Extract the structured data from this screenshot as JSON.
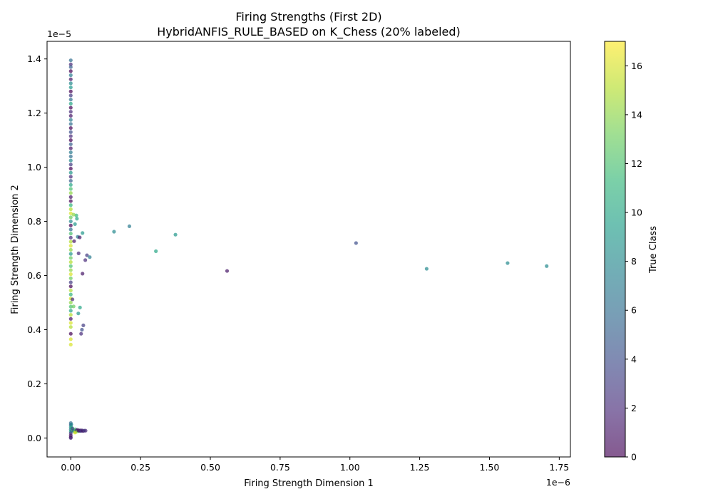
{
  "chart_data": {
    "type": "scatter",
    "title": "Firing Strengths (First 2D)",
    "subtitle": "HybridANFIS_RULE_BASED on K_Chess (20% labeled)",
    "xlabel": "Firing Strength Dimension 1",
    "ylabel": "Firing Strength Dimension 2",
    "x_offset_text": "1e−6",
    "y_offset_text": "1e−5",
    "xlim": [
      -0.085,
      1.79
    ],
    "ylim": [
      -0.07,
      1.465
    ],
    "x_ticks": [
      "0.00",
      "0.25",
      "0.50",
      "0.75",
      "1.00",
      "1.25",
      "1.50",
      "1.75"
    ],
    "y_ticks": [
      "0.0",
      "0.2",
      "0.4",
      "0.6",
      "0.8",
      "1.0",
      "1.2",
      "1.4"
    ],
    "colorbar": {
      "label": "True Class",
      "range": [
        0,
        17
      ],
      "ticks": [
        "0",
        "2",
        "4",
        "6",
        "8",
        "10",
        "12",
        "14",
        "16"
      ]
    },
    "colormap": [
      "#440154",
      "#482878",
      "#3e4989",
      "#31688e",
      "#26828e",
      "#1f9e89",
      "#35b779",
      "#6ece58",
      "#b5de2b",
      "#fde725"
    ],
    "grid": false,
    "points": [
      {
        "x": 0.0,
        "y": 1.395,
        "c": 6
      },
      {
        "x": 0.0,
        "y": 1.38,
        "c": 2
      },
      {
        "x": 0.0,
        "y": 1.37,
        "c": 5
      },
      {
        "x": 0.0,
        "y": 1.355,
        "c": 0
      },
      {
        "x": 0.0,
        "y": 1.34,
        "c": 7
      },
      {
        "x": 0.0,
        "y": 1.325,
        "c": 1
      },
      {
        "x": 0.0,
        "y": 1.31,
        "c": 8
      },
      {
        "x": 0.0,
        "y": 1.295,
        "c": 9
      },
      {
        "x": 0.0,
        "y": 1.28,
        "c": 0
      },
      {
        "x": 0.0,
        "y": 1.265,
        "c": 3
      },
      {
        "x": 0.0,
        "y": 1.25,
        "c": 6
      },
      {
        "x": 0.0,
        "y": 1.235,
        "c": 10
      },
      {
        "x": 0.0,
        "y": 1.22,
        "c": 0
      },
      {
        "x": 0.0,
        "y": 1.205,
        "c": 2
      },
      {
        "x": 0.0,
        "y": 1.19,
        "c": 1
      },
      {
        "x": 0.0,
        "y": 1.175,
        "c": 7
      },
      {
        "x": 0.0,
        "y": 1.16,
        "c": 6
      },
      {
        "x": 0.0,
        "y": 1.145,
        "c": 0
      },
      {
        "x": 0.0,
        "y": 1.13,
        "c": 4
      },
      {
        "x": 0.0,
        "y": 1.115,
        "c": 2
      },
      {
        "x": 0.0,
        "y": 1.1,
        "c": 0
      },
      {
        "x": 0.0,
        "y": 1.085,
        "c": 5
      },
      {
        "x": 0.0,
        "y": 1.07,
        "c": 1
      },
      {
        "x": 0.0,
        "y": 1.055,
        "c": 7
      },
      {
        "x": 0.0,
        "y": 1.04,
        "c": 6
      },
      {
        "x": 0.0,
        "y": 1.025,
        "c": 8
      },
      {
        "x": 0.0,
        "y": 1.01,
        "c": 3
      },
      {
        "x": 0.0,
        "y": 0.995,
        "c": 0
      },
      {
        "x": 0.0,
        "y": 0.98,
        "c": 9
      },
      {
        "x": 0.0,
        "y": 0.965,
        "c": 2
      },
      {
        "x": 0.0,
        "y": 0.95,
        "c": 5
      },
      {
        "x": 0.0,
        "y": 0.935,
        "c": 10
      },
      {
        "x": 0.0,
        "y": 0.92,
        "c": 12
      },
      {
        "x": 0.0,
        "y": 0.905,
        "c": 14
      },
      {
        "x": 0.0,
        "y": 0.89,
        "c": 1
      },
      {
        "x": 0.0,
        "y": 0.875,
        "c": 0
      },
      {
        "x": 0.0,
        "y": 0.86,
        "c": 11
      },
      {
        "x": 0.0,
        "y": 0.845,
        "c": 15
      },
      {
        "x": 0.0,
        "y": 0.83,
        "c": 16
      },
      {
        "x": 0.0,
        "y": 0.815,
        "c": 13
      },
      {
        "x": 0.0,
        "y": 0.8,
        "c": 8
      },
      {
        "x": 0.0,
        "y": 0.785,
        "c": 0
      },
      {
        "x": 0.0,
        "y": 0.77,
        "c": 6
      },
      {
        "x": 0.0,
        "y": 0.755,
        "c": 12
      },
      {
        "x": 0.0,
        "y": 0.74,
        "c": 2
      },
      {
        "x": 0.0,
        "y": 0.725,
        "c": 15
      },
      {
        "x": 0.0,
        "y": 0.71,
        "c": 16
      },
      {
        "x": 0.0,
        "y": 0.695,
        "c": 14
      },
      {
        "x": 0.0,
        "y": 0.68,
        "c": 9
      },
      {
        "x": 0.0,
        "y": 0.665,
        "c": 13
      },
      {
        "x": 0.0,
        "y": 0.65,
        "c": 15
      },
      {
        "x": 0.0,
        "y": 0.635,
        "c": 12
      },
      {
        "x": 0.0,
        "y": 0.62,
        "c": 14
      },
      {
        "x": 0.0,
        "y": 0.605,
        "c": 16
      },
      {
        "x": 0.0,
        "y": 0.59,
        "c": 13
      },
      {
        "x": 0.0,
        "y": 0.575,
        "c": 3
      },
      {
        "x": 0.0,
        "y": 0.56,
        "c": 0
      },
      {
        "x": 0.0,
        "y": 0.545,
        "c": 15
      },
      {
        "x": 0.0,
        "y": 0.53,
        "c": 11
      },
      {
        "x": 0.0,
        "y": 0.515,
        "c": 16
      },
      {
        "x": 0.0,
        "y": 0.5,
        "c": 14
      },
      {
        "x": 0.0,
        "y": 0.485,
        "c": 12
      },
      {
        "x": 0.0,
        "y": 0.47,
        "c": 10
      },
      {
        "x": 0.0,
        "y": 0.455,
        "c": 15
      },
      {
        "x": 0.0,
        "y": 0.44,
        "c": 1
      },
      {
        "x": 0.0,
        "y": 0.425,
        "c": 16
      },
      {
        "x": 0.0,
        "y": 0.41,
        "c": 15
      },
      {
        "x": 0.0,
        "y": 0.385,
        "c": 0
      },
      {
        "x": 0.0,
        "y": 0.365,
        "c": 16
      },
      {
        "x": 0.0,
        "y": 0.345,
        "c": 16
      },
      {
        "x": 0.02,
        "y": 0.822,
        "c": 11
      },
      {
        "x": 0.022,
        "y": 0.81,
        "c": 10
      },
      {
        "x": 0.015,
        "y": 0.79,
        "c": 9
      },
      {
        "x": 0.01,
        "y": 0.825,
        "c": 14
      },
      {
        "x": 0.042,
        "y": 0.757,
        "c": 9
      },
      {
        "x": 0.025,
        "y": 0.743,
        "c": 7
      },
      {
        "x": 0.032,
        "y": 0.741,
        "c": 1
      },
      {
        "x": 0.012,
        "y": 0.727,
        "c": 1
      },
      {
        "x": 0.028,
        "y": 0.682,
        "c": 2
      },
      {
        "x": 0.058,
        "y": 0.675,
        "c": 3
      },
      {
        "x": 0.068,
        "y": 0.668,
        "c": 7
      },
      {
        "x": 0.052,
        "y": 0.657,
        "c": 2
      },
      {
        "x": 0.042,
        "y": 0.607,
        "c": 1
      },
      {
        "x": 0.006,
        "y": 0.512,
        "c": 2
      },
      {
        "x": 0.01,
        "y": 0.486,
        "c": 13
      },
      {
        "x": 0.033,
        "y": 0.482,
        "c": 10
      },
      {
        "x": 0.027,
        "y": 0.46,
        "c": 9
      },
      {
        "x": 0.045,
        "y": 0.416,
        "c": 3
      },
      {
        "x": 0.04,
        "y": 0.4,
        "c": 4
      },
      {
        "x": 0.037,
        "y": 0.385,
        "c": 2
      },
      {
        "x": 0.155,
        "y": 0.762,
        "c": 8
      },
      {
        "x": 0.21,
        "y": 0.782,
        "c": 7
      },
      {
        "x": 0.375,
        "y": 0.751,
        "c": 9
      },
      {
        "x": 0.305,
        "y": 0.69,
        "c": 10
      },
      {
        "x": 0.56,
        "y": 0.617,
        "c": 1
      },
      {
        "x": 1.022,
        "y": 0.72,
        "c": 4
      },
      {
        "x": 1.275,
        "y": 0.625,
        "c": 8
      },
      {
        "x": 1.565,
        "y": 0.646,
        "c": 8
      },
      {
        "x": 1.705,
        "y": 0.635,
        "c": 8
      },
      {
        "x": 0.0,
        "y": 0.055,
        "c": 6
      },
      {
        "x": 0.0,
        "y": 0.048,
        "c": 5
      },
      {
        "x": 0.0,
        "y": 0.04,
        "c": 9
      },
      {
        "x": 0.0,
        "y": 0.032,
        "c": 7
      },
      {
        "x": 0.0,
        "y": 0.025,
        "c": 10
      },
      {
        "x": 0.0,
        "y": 0.018,
        "c": 3
      },
      {
        "x": 0.0,
        "y": 0.01,
        "c": 1
      },
      {
        "x": 0.0,
        "y": 0.003,
        "c": 0
      },
      {
        "x": 0.0,
        "y": 0.0,
        "c": 2
      },
      {
        "x": 0.002,
        "y": 0.05,
        "c": 8
      },
      {
        "x": 0.003,
        "y": 0.038,
        "c": 11
      },
      {
        "x": 0.004,
        "y": 0.027,
        "c": 6
      },
      {
        "x": 0.008,
        "y": 0.03,
        "c": 14
      },
      {
        "x": 0.01,
        "y": 0.027,
        "c": 5
      },
      {
        "x": 0.013,
        "y": 0.024,
        "c": 10
      },
      {
        "x": 0.016,
        "y": 0.032,
        "c": 12
      },
      {
        "x": 0.018,
        "y": 0.022,
        "c": 15
      },
      {
        "x": 0.02,
        "y": 0.027,
        "c": 3
      },
      {
        "x": 0.023,
        "y": 0.03,
        "c": 1
      },
      {
        "x": 0.025,
        "y": 0.025,
        "c": 13
      },
      {
        "x": 0.028,
        "y": 0.028,
        "c": 0
      },
      {
        "x": 0.031,
        "y": 0.026,
        "c": 2
      },
      {
        "x": 0.034,
        "y": 0.028,
        "c": 1
      },
      {
        "x": 0.037,
        "y": 0.026,
        "c": 3
      },
      {
        "x": 0.04,
        "y": 0.028,
        "c": 2
      },
      {
        "x": 0.044,
        "y": 0.026,
        "c": 1
      },
      {
        "x": 0.048,
        "y": 0.027,
        "c": 3
      },
      {
        "x": 0.053,
        "y": 0.027,
        "c": 2
      },
      {
        "x": 0.015,
        "y": 0.02,
        "c": 16
      },
      {
        "x": 0.006,
        "y": 0.035,
        "c": 4
      }
    ]
  }
}
